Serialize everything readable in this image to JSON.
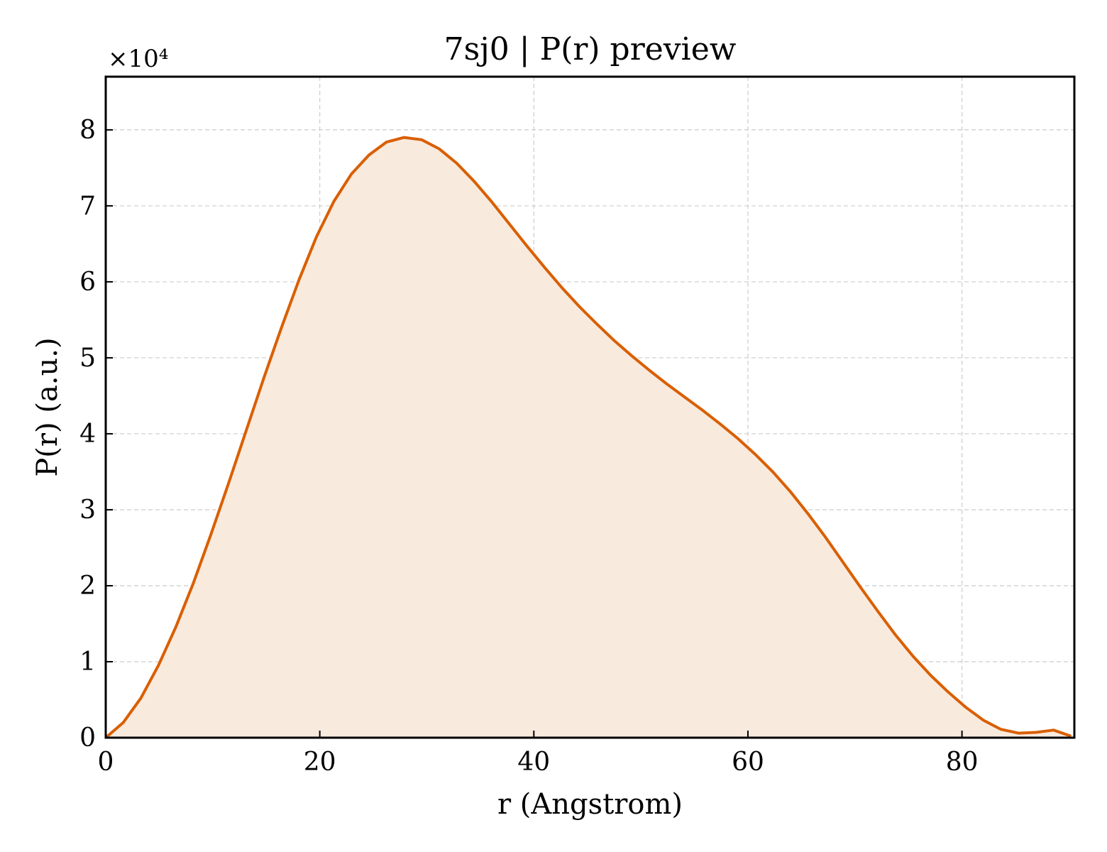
{
  "chart_data": {
    "type": "area",
    "title": "7sj0 | P(r) preview",
    "xlabel": "r (Angstrom)",
    "ylabel": "P(r) (a.u.)",
    "y_multiplier_label": "×10⁴",
    "y_scale": 10000,
    "xlim": [
      0,
      90.5
    ],
    "ylim": [
      0,
      87000
    ],
    "xticks": [
      0,
      20,
      40,
      60,
      80
    ],
    "yticks": [
      0,
      10000,
      20000,
      30000,
      40000,
      50000,
      60000,
      70000,
      80000
    ],
    "ytick_labels": [
      "0",
      "1",
      "2",
      "3",
      "4",
      "5",
      "6",
      "7",
      "8"
    ],
    "grid": true,
    "line_color": "#d95f02",
    "fill_color": "#f9eade",
    "series": [
      {
        "x": [
          0,
          1.64,
          3.28,
          4.92,
          6.56,
          8.2,
          9.84,
          11.48,
          13.12,
          14.76,
          16.4,
          18.04,
          19.68,
          21.32,
          22.96,
          24.6,
          26.24,
          27.88,
          29.52,
          31.16,
          32.8,
          34.44,
          36.08,
          37.72,
          39.36,
          41.0,
          42.64,
          44.28,
          45.92,
          47.56,
          49.2,
          50.84,
          52.48,
          54.12,
          55.76,
          57.4,
          59.04,
          60.68,
          62.32,
          63.96,
          65.6,
          67.24,
          68.88,
          70.52,
          72.16,
          73.8,
          75.44,
          77.08,
          78.72,
          80.36,
          82.0,
          83.64,
          85.28,
          86.92,
          88.56,
          90.2
        ],
        "y": [
          0,
          2000,
          5200,
          9500,
          14600,
          20400,
          26800,
          33500,
          40400,
          47300,
          53900,
          60200,
          65900,
          70600,
          74200,
          76700,
          78400,
          79000,
          78700,
          77500,
          75600,
          73200,
          70500,
          67600,
          64700,
          61900,
          59200,
          56700,
          54400,
          52200,
          50200,
          48300,
          46500,
          44800,
          43100,
          41300,
          39400,
          37300,
          35000,
          32400,
          29500,
          26400,
          23100,
          19800,
          16600,
          13500,
          10700,
          8200,
          6000,
          4000,
          2300,
          1100,
          600,
          700,
          1000,
          200
        ]
      }
    ]
  }
}
